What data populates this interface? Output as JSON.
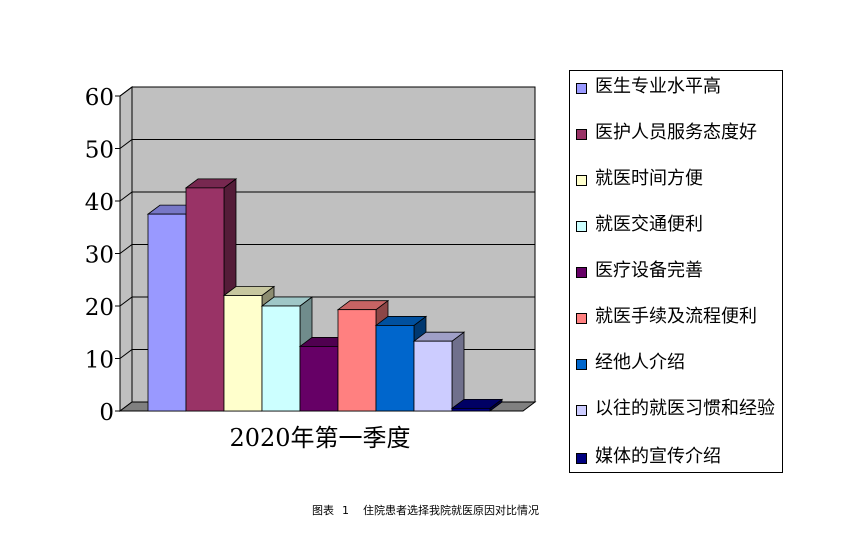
{
  "chart_data": {
    "type": "bar",
    "categories": [
      "2020年第一季度"
    ],
    "series": [
      {
        "name": "医生专业水平高",
        "values": [
          37.5
        ],
        "color": "#9999ff"
      },
      {
        "name": "医护人员服务态度好",
        "values": [
          42.5
        ],
        "color": "#993366"
      },
      {
        "name": "就医时间方便",
        "values": [
          22
        ],
        "color": "#ffffcc"
      },
      {
        "name": "就医交通便利",
        "values": [
          20
        ],
        "color": "#ccffff"
      },
      {
        "name": "医疗设备完善",
        "values": [
          12.3
        ],
        "color": "#660066"
      },
      {
        "name": "就医手续及流程便利",
        "values": [
          19.3
        ],
        "color": "#ff8080"
      },
      {
        "name": "经他人介绍",
        "values": [
          16.3
        ],
        "color": "#0066cc"
      },
      {
        "name": "以往的就医习惯和经验",
        "values": [
          13.3
        ],
        "color": "#ccccff"
      },
      {
        "name": "媒体的宣传介绍",
        "values": [
          0.5
        ],
        "color": "#000080"
      }
    ],
    "y_ticks": [
      "0",
      "10",
      "20",
      "30",
      "40",
      "50",
      "60"
    ],
    "ylim": [
      0,
      60
    ],
    "grid": true,
    "legend_position": "right",
    "wall_color": "#c0c0c0",
    "floor_color": "#808080"
  },
  "caption": {
    "label": "图表",
    "number": "1",
    "text": "住院患者选择我院就医原因对比情况"
  }
}
